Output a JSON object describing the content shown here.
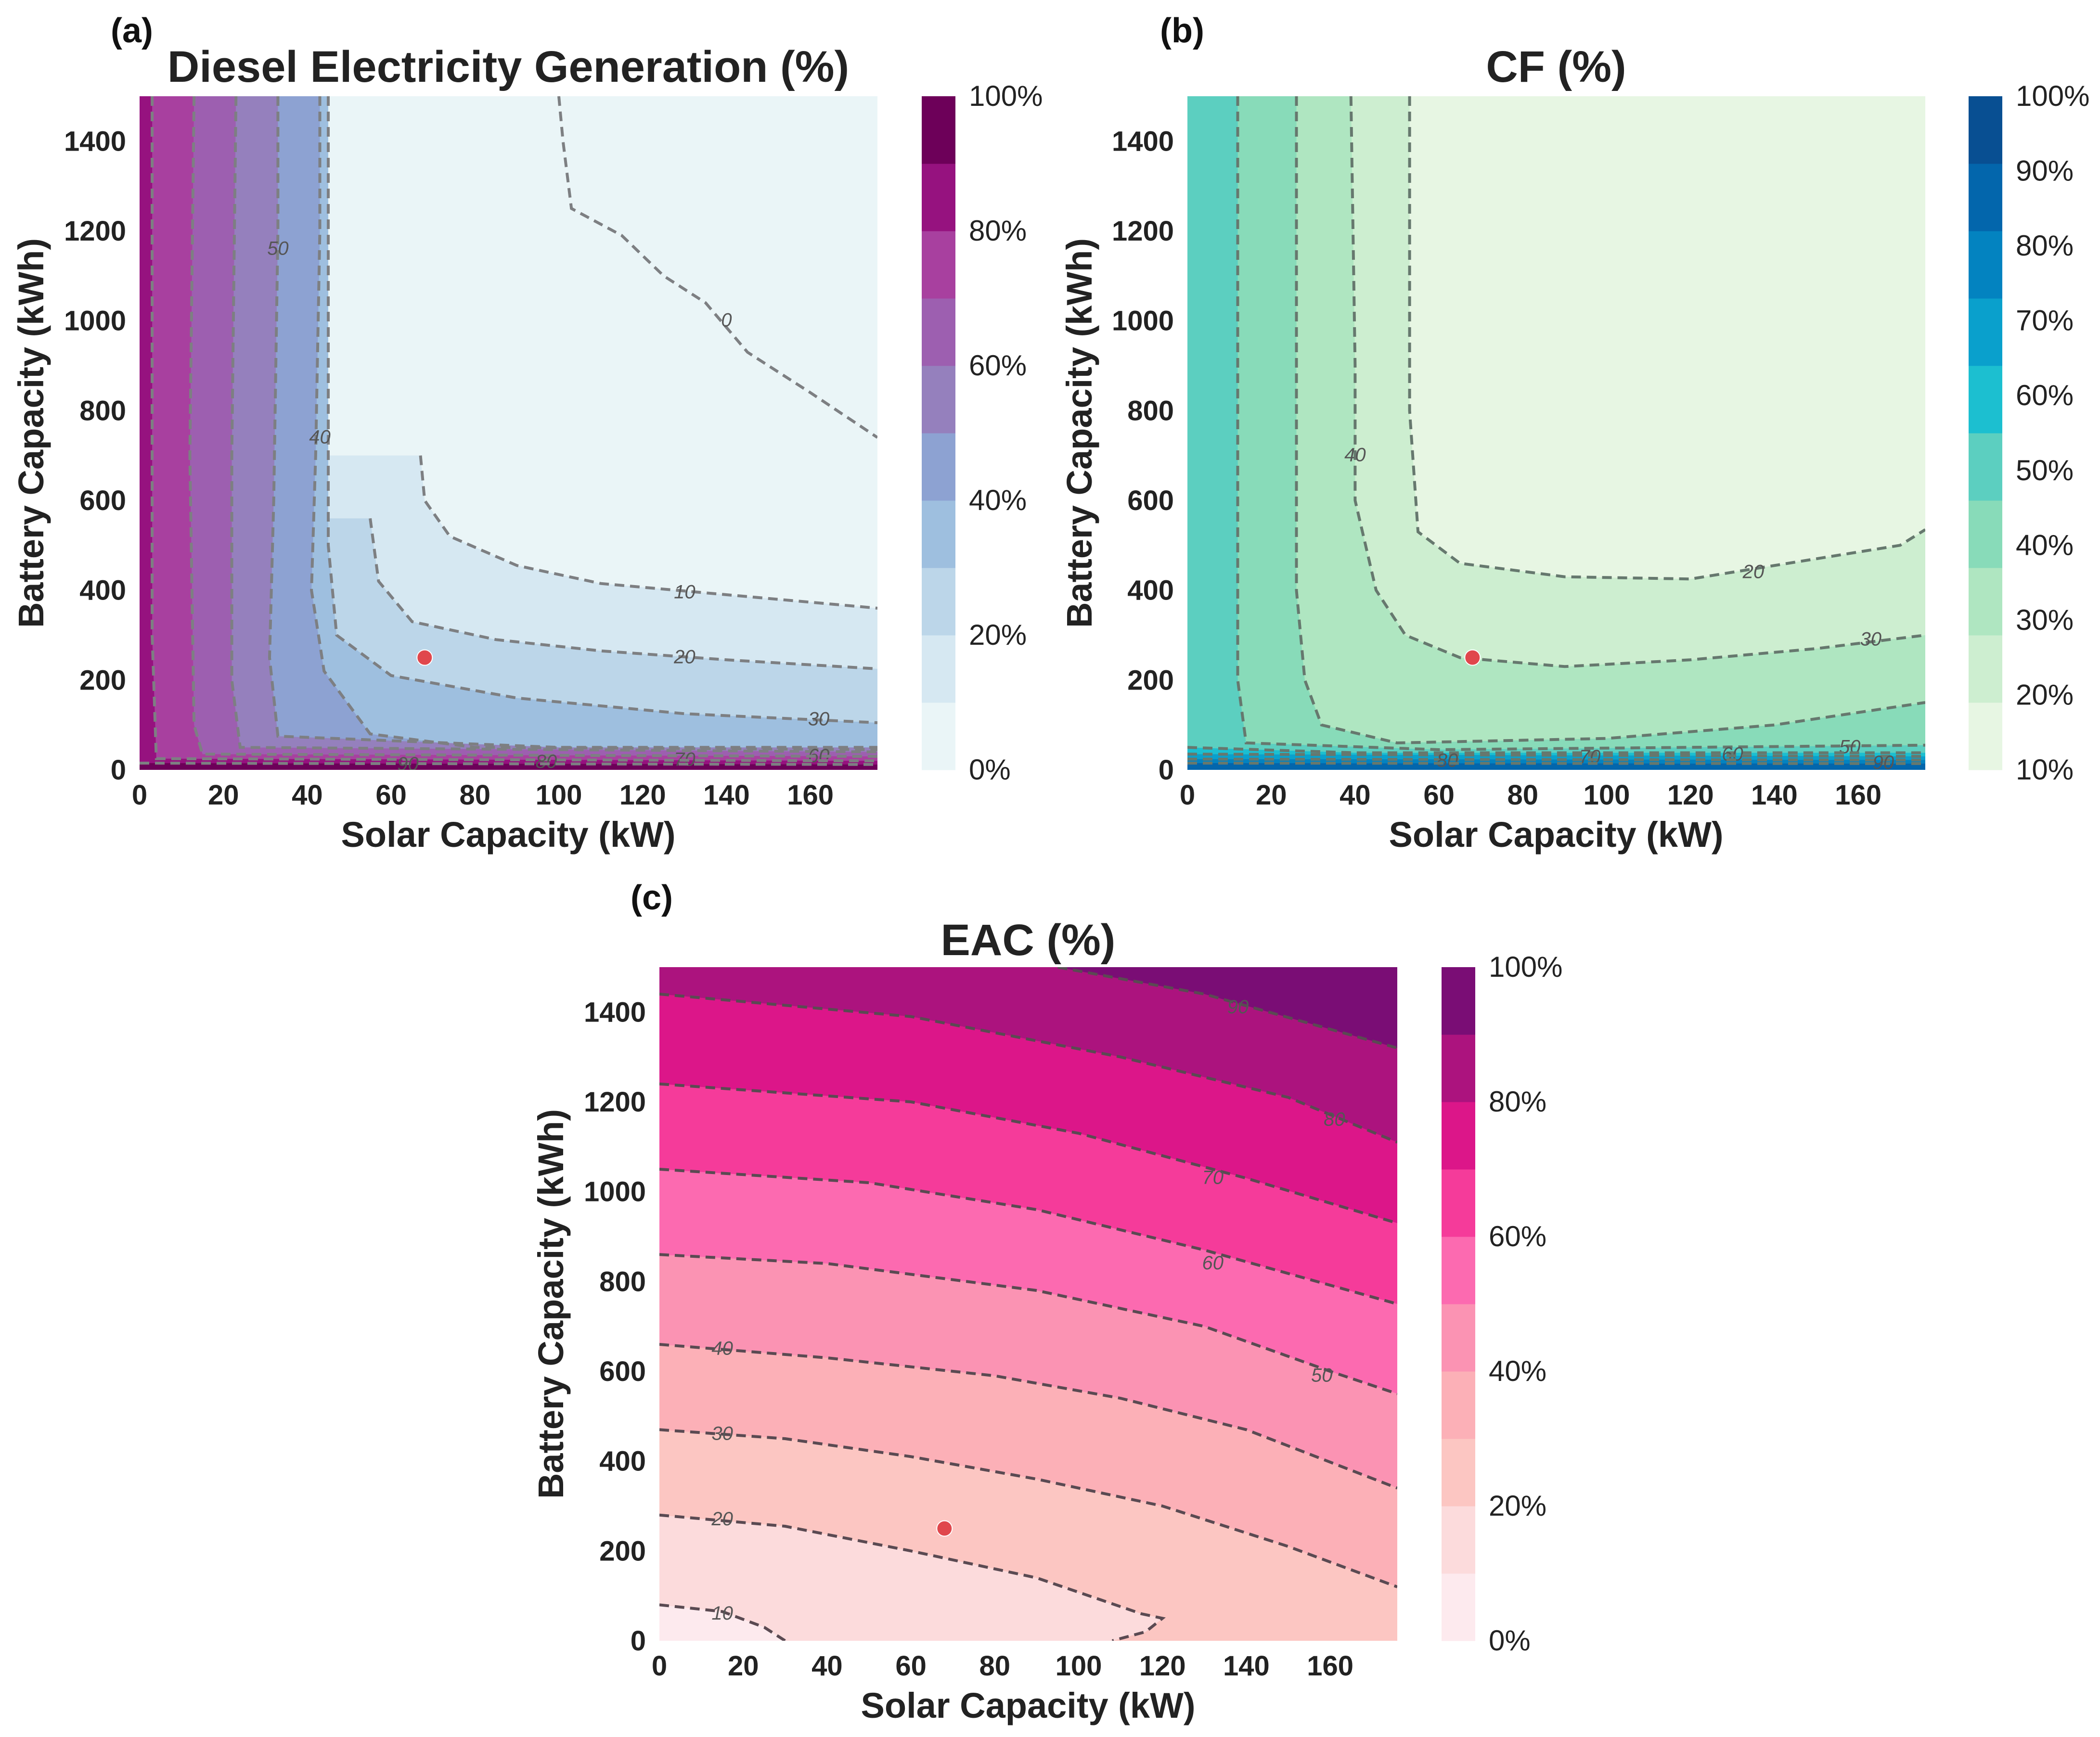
{
  "chart_data": [
    {
      "type": "heatmap",
      "panel_label": "(a)",
      "title": "Diesel Electricity Generation (%)",
      "xlabel": "Solar Capacity (kW)",
      "ylabel": "Battery Capacity (kWh)",
      "xlim": [
        0,
        176
      ],
      "ylim": [
        0,
        1500
      ],
      "x_ticks": [
        "0",
        "20",
        "40",
        "60",
        "80",
        "100",
        "120",
        "140",
        "160"
      ],
      "y_ticks": [
        "0",
        "200",
        "400",
        "600",
        "800",
        "1000",
        "1200",
        "1400"
      ],
      "colorbar_ticks": [
        "0%",
        "20%",
        "40%",
        "60%",
        "80%",
        "100%"
      ],
      "colorbar_colors": [
        "#eaf5f7",
        "#d6e8f2",
        "#bcd6e9",
        "#9ebfdf",
        "#8da2d2",
        "#9580bd",
        "#9d5fb0",
        "#a8409f",
        "#96127f",
        "#6d0059"
      ],
      "highlight_point": {
        "x": 68,
        "y": 250
      },
      "contours": [
        {
          "level": "0",
          "label_at": [
            140,
            1000
          ],
          "points": [
            [
              100,
              1500
            ],
            [
              101,
              1400
            ],
            [
              103,
              1250
            ],
            [
              115,
              1190
            ],
            [
              125,
              1100
            ],
            [
              135,
              1040
            ],
            [
              145,
              930
            ],
            [
              160,
              840
            ],
            [
              176,
              740
            ]
          ]
        },
        {
          "level": "10",
          "label_at": [
            130,
            395
          ],
          "points": [
            [
              67,
              700
            ],
            [
              68,
              600
            ],
            [
              74,
              520
            ],
            [
              90,
              455
            ],
            [
              110,
              415
            ],
            [
              140,
              390
            ],
            [
              176,
              360
            ]
          ]
        },
        {
          "level": "20",
          "label_at": [
            130,
            250
          ],
          "points": [
            [
              55,
              560
            ],
            [
              57,
              420
            ],
            [
              65,
              330
            ],
            [
              85,
              290
            ],
            [
              110,
              265
            ],
            [
              140,
              245
            ],
            [
              176,
              225
            ]
          ]
        },
        {
          "level": "30",
          "label_at": [
            162,
            112
          ],
          "points": [
            [
              45,
              1500
            ],
            [
              45,
              500
            ],
            [
              47,
              300
            ],
            [
              60,
              210
            ],
            [
              90,
              160
            ],
            [
              130,
              125
            ],
            [
              176,
              105
            ]
          ]
        },
        {
          "level": "40",
          "label_at": [
            43,
            740
          ],
          "points": [
            [
              43,
              1500
            ],
            [
              43,
              1200
            ],
            [
              42,
              700
            ],
            [
              41,
              400
            ],
            [
              44,
              220
            ],
            [
              55,
              80
            ],
            [
              80,
              50
            ],
            [
              176,
              45
            ]
          ]
        },
        {
          "level": "50",
          "label_at": [
            33,
            1160
          ],
          "points": [
            [
              33,
              1500
            ],
            [
              33,
              1200
            ],
            [
              32,
              600
            ],
            [
              31,
              250
            ],
            [
              33,
              75
            ],
            [
              100,
              50
            ],
            [
              176,
              50
            ]
          ]
        },
        {
          "level": "60",
          "label_at": [
            162,
            30
          ],
          "points": [
            [
              23,
              1500
            ],
            [
              22,
              700
            ],
            [
              22,
              200
            ],
            [
              24,
              50
            ],
            [
              176,
              40
            ]
          ]
        },
        {
          "level": "70",
          "label_at": [
            130,
            22
          ],
          "points": [
            [
              13,
              1500
            ],
            [
              12,
              700
            ],
            [
              13,
              100
            ],
            [
              15,
              35
            ],
            [
              176,
              30
            ]
          ]
        },
        {
          "level": "80",
          "label_at": [
            97,
            17
          ],
          "points": [
            [
              3,
              1500
            ],
            [
              3,
              300
            ],
            [
              4,
              25
            ],
            [
              176,
              20
            ]
          ]
        },
        {
          "level": "90",
          "label_at": [
            64,
            12
          ],
          "points": [
            [
              0,
              15
            ],
            [
              176,
              12
            ]
          ]
        }
      ]
    },
    {
      "type": "heatmap",
      "panel_label": "(b)",
      "title": "CF (%)",
      "xlabel": "Solar Capacity (kW)",
      "ylabel": "Battery Capacity (kWh)",
      "xlim": [
        0,
        176
      ],
      "ylim": [
        0,
        1500
      ],
      "x_ticks": [
        "0",
        "20",
        "40",
        "60",
        "80",
        "100",
        "120",
        "140",
        "160"
      ],
      "y_ticks": [
        "0",
        "200",
        "400",
        "600",
        "800",
        "1000",
        "1200",
        "1400"
      ],
      "colorbar_ticks": [
        "10%",
        "20%",
        "30%",
        "40%",
        "50%",
        "60%",
        "70%",
        "80%",
        "90%",
        "100%"
      ],
      "colorbar_colors": [
        "#e7f6e3",
        "#cdeed0",
        "#afe6c1",
        "#88dbb9",
        "#5ccfc0",
        "#1cbfd0",
        "#0aa0cc",
        "#0383c0",
        "#0366ac",
        "#084f92"
      ],
      "highlight_point": {
        "x": 68,
        "y": 250
      },
      "contours": [
        {
          "level": "20",
          "label_at": [
            135,
            440
          ],
          "points": [
            [
              53,
              1500
            ],
            [
              53,
              800
            ],
            [
              55,
              530
            ],
            [
              65,
              460
            ],
            [
              90,
              430
            ],
            [
              120,
              425
            ],
            [
              150,
              470
            ],
            [
              170,
              500
            ],
            [
              176,
              535
            ]
          ]
        },
        {
          "level": "30",
          "label_at": [
            163,
            290
          ],
          "points": [
            [
              39,
              1500
            ],
            [
              40,
              900
            ],
            [
              40,
              600
            ],
            [
              45,
              400
            ],
            [
              52,
              300
            ],
            [
              65,
              250
            ],
            [
              90,
              230
            ],
            [
              120,
              245
            ],
            [
              150,
              270
            ],
            [
              176,
              300
            ]
          ]
        },
        {
          "level": "40",
          "label_at": [
            40,
            700
          ],
          "points": [
            [
              26,
              1500
            ],
            [
              26,
              1000
            ],
            [
              26,
              400
            ],
            [
              28,
              200
            ],
            [
              32,
              100
            ],
            [
              50,
              60
            ],
            [
              100,
              70
            ],
            [
              140,
              100
            ],
            [
              176,
              150
            ]
          ]
        },
        {
          "level": "50",
          "label_at": [
            158,
            50
          ],
          "points": [
            [
              12,
              1500
            ],
            [
              12,
              800
            ],
            [
              12,
              200
            ],
            [
              14,
              60
            ],
            [
              60,
              45
            ],
            [
              176,
              55
            ]
          ]
        },
        {
          "level": "60",
          "label_at": [
            130,
            34
          ],
          "points": [
            [
              0,
              50
            ],
            [
              40,
              38
            ],
            [
              176,
              38
            ]
          ]
        },
        {
          "level": "70",
          "label_at": [
            96,
            28
          ],
          "points": [
            [
              0,
              35
            ],
            [
              176,
              30
            ]
          ]
        },
        {
          "level": "80",
          "label_at": [
            62,
            20
          ],
          "points": [
            [
              0,
              24
            ],
            [
              176,
              22
            ]
          ]
        },
        {
          "level": "90",
          "label_at": [
            166,
            15
          ],
          "points": [
            [
              0,
              15
            ],
            [
              176,
              14
            ]
          ]
        }
      ]
    },
    {
      "type": "heatmap",
      "panel_label": "(c)",
      "title": "EAC (%)",
      "xlabel": "Solar Capacity (kW)",
      "ylabel": "Battery Capacity (kWh)",
      "xlim": [
        0,
        176
      ],
      "ylim": [
        0,
        1500
      ],
      "x_ticks": [
        "0",
        "20",
        "40",
        "60",
        "80",
        "100",
        "120",
        "140",
        "160"
      ],
      "y_ticks": [
        "0",
        "200",
        "400",
        "600",
        "800",
        "1000",
        "1200",
        "1400"
      ],
      "colorbar_ticks": [
        "0%",
        "20%",
        "40%",
        "60%",
        "80%",
        "100%"
      ],
      "colorbar_colors": [
        "#fdeaee",
        "#fcdbdc",
        "#fcc6c2",
        "#fcb0b7",
        "#fb93b3",
        "#fc6ab0",
        "#f53b9a",
        "#dc1689",
        "#ac137e",
        "#7a0d75"
      ],
      "highlight_point": {
        "x": 68,
        "y": 250
      },
      "contours": [
        {
          "level": "10",
          "label_at": [
            15,
            60
          ],
          "points": [
            [
              0,
              80
            ],
            [
              15,
              65
            ],
            [
              25,
              30
            ],
            [
              30,
              0
            ]
          ]
        },
        {
          "level": "20",
          "label_at": [
            15,
            270
          ],
          "points": [
            [
              0,
              280
            ],
            [
              30,
              255
            ],
            [
              60,
              200
            ],
            [
              90,
              140
            ],
            [
              115,
              60
            ],
            [
              120,
              50
            ],
            [
              116,
              20
            ],
            [
              108,
              0
            ]
          ]
        },
        {
          "level": "30",
          "label_at": [
            15,
            460
          ],
          "points": [
            [
              0,
              470
            ],
            [
              30,
              450
            ],
            [
              60,
              410
            ],
            [
              90,
              360
            ],
            [
              120,
              300
            ],
            [
              150,
              210
            ],
            [
              176,
              120
            ]
          ]
        },
        {
          "level": "40",
          "label_at": [
            15,
            650
          ],
          "points": [
            [
              0,
              660
            ],
            [
              40,
              630
            ],
            [
              80,
              590
            ],
            [
              110,
              540
            ],
            [
              140,
              470
            ],
            [
              176,
              340
            ]
          ]
        },
        {
          "level": "50",
          "label_at": [
            158,
            590
          ],
          "points": [
            [
              0,
              860
            ],
            [
              40,
              840
            ],
            [
              90,
              780
            ],
            [
              130,
              700
            ],
            [
              160,
              600
            ],
            [
              176,
              550
            ]
          ]
        },
        {
          "level": "60",
          "label_at": [
            132,
            840
          ],
          "points": [
            [
              0,
              1050
            ],
            [
              50,
              1020
            ],
            [
              90,
              960
            ],
            [
              130,
              870
            ],
            [
              176,
              750
            ]
          ]
        },
        {
          "level": "70",
          "label_at": [
            132,
            1030
          ],
          "points": [
            [
              0,
              1240
            ],
            [
              60,
              1200
            ],
            [
              100,
              1130
            ],
            [
              140,
              1030
            ],
            [
              176,
              930
            ]
          ]
        },
        {
          "level": "80",
          "label_at": [
            161,
            1160
          ],
          "points": [
            [
              0,
              1440
            ],
            [
              60,
              1390
            ],
            [
              110,
              1300
            ],
            [
              150,
              1210
            ],
            [
              176,
              1110
            ]
          ]
        },
        {
          "level": "90",
          "label_at": [
            138,
            1410
          ],
          "points": [
            [
              95,
              1500
            ],
            [
              130,
              1440
            ],
            [
              176,
              1320
            ]
          ]
        }
      ]
    }
  ]
}
